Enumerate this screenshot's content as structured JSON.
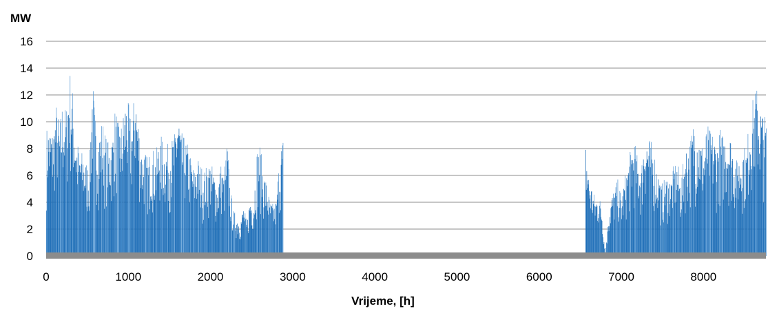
{
  "chart_data": {
    "type": "bar",
    "title": "",
    "xlabel": "Vrijeme, [h]",
    "ylabel": "MW",
    "xlim": [
      0,
      8760
    ],
    "ylim": [
      0,
      16
    ],
    "x_ticks": [
      0,
      1000,
      2000,
      3000,
      4000,
      5000,
      6000,
      7000,
      8000
    ],
    "y_ticks": [
      0,
      2,
      4,
      6,
      8,
      10,
      12,
      14,
      16
    ],
    "grid": true,
    "legend": "none",
    "colors": {
      "bars": "#1f6fb8",
      "bars_light": "#5b9bd5",
      "baseline": "#8c8c8c",
      "grid": "#8c8c8c"
    },
    "series": [
      {
        "values_note_x_step_h": 40,
        "peak_profile": [
          {
            "x": 0,
            "y": 9.6
          },
          {
            "x": 40,
            "y": 9.8
          },
          {
            "x": 80,
            "y": 9.4
          },
          {
            "x": 120,
            "y": 11.4
          },
          {
            "x": 160,
            "y": 9.9
          },
          {
            "x": 200,
            "y": 11.9
          },
          {
            "x": 240,
            "y": 10.8
          },
          {
            "x": 280,
            "y": 14.3
          },
          {
            "x": 320,
            "y": 12.4
          },
          {
            "x": 360,
            "y": 9.1
          },
          {
            "x": 400,
            "y": 8.0
          },
          {
            "x": 440,
            "y": 7.8
          },
          {
            "x": 480,
            "y": 7.2
          },
          {
            "x": 520,
            "y": 6.5
          },
          {
            "x": 560,
            "y": 13.6
          },
          {
            "x": 600,
            "y": 9.9
          },
          {
            "x": 640,
            "y": 9.2
          },
          {
            "x": 680,
            "y": 10.4
          },
          {
            "x": 720,
            "y": 9.1
          },
          {
            "x": 760,
            "y": 8.4
          },
          {
            "x": 800,
            "y": 9.0
          },
          {
            "x": 840,
            "y": 11.3
          },
          {
            "x": 880,
            "y": 9.8
          },
          {
            "x": 920,
            "y": 10.0
          },
          {
            "x": 960,
            "y": 11.9
          },
          {
            "x": 1000,
            "y": 11.4
          },
          {
            "x": 1040,
            "y": 9.7
          },
          {
            "x": 1080,
            "y": 13.2
          },
          {
            "x": 1120,
            "y": 10.2
          },
          {
            "x": 1160,
            "y": 8.0
          },
          {
            "x": 1200,
            "y": 7.9
          },
          {
            "x": 1240,
            "y": 7.2
          },
          {
            "x": 1280,
            "y": 8.6
          },
          {
            "x": 1320,
            "y": 7.5
          },
          {
            "x": 1360,
            "y": 8.5
          },
          {
            "x": 1400,
            "y": 9.0
          },
          {
            "x": 1440,
            "y": 8.1
          },
          {
            "x": 1480,
            "y": 8.4
          },
          {
            "x": 1520,
            "y": 8.7
          },
          {
            "x": 1560,
            "y": 9.2
          },
          {
            "x": 1600,
            "y": 11.5
          },
          {
            "x": 1640,
            "y": 9.3
          },
          {
            "x": 1680,
            "y": 8.8
          },
          {
            "x": 1720,
            "y": 8.4
          },
          {
            "x": 1760,
            "y": 7.3
          },
          {
            "x": 1800,
            "y": 6.5
          },
          {
            "x": 1840,
            "y": 7.5
          },
          {
            "x": 1880,
            "y": 6.8
          },
          {
            "x": 1920,
            "y": 6.4
          },
          {
            "x": 1960,
            "y": 6.9
          },
          {
            "x": 2000,
            "y": 7.1
          },
          {
            "x": 2040,
            "y": 6.3
          },
          {
            "x": 2080,
            "y": 5.2
          },
          {
            "x": 2120,
            "y": 7.0
          },
          {
            "x": 2160,
            "y": 6.1
          },
          {
            "x": 2200,
            "y": 8.7
          },
          {
            "x": 2240,
            "y": 5.0
          },
          {
            "x": 2280,
            "y": 3.4
          },
          {
            "x": 2320,
            "y": 3.0
          },
          {
            "x": 2360,
            "y": 2.7
          },
          {
            "x": 2400,
            "y": 3.8
          },
          {
            "x": 2440,
            "y": 2.5
          },
          {
            "x": 2480,
            "y": 4.6
          },
          {
            "x": 2520,
            "y": 4.0
          },
          {
            "x": 2560,
            "y": 7.9
          },
          {
            "x": 2600,
            "y": 8.4
          },
          {
            "x": 2640,
            "y": 6.4
          },
          {
            "x": 2680,
            "y": 5.6
          },
          {
            "x": 2720,
            "y": 4.1
          },
          {
            "x": 2760,
            "y": 3.9
          },
          {
            "x": 2800,
            "y": 4.2
          },
          {
            "x": 2840,
            "y": 7.9
          },
          {
            "x": 2880,
            "y": 8.9
          },
          {
            "x": 6560,
            "y": 8.8
          },
          {
            "x": 6600,
            "y": 6.3
          },
          {
            "x": 6640,
            "y": 5.2
          },
          {
            "x": 6680,
            "y": 4.4
          },
          {
            "x": 6720,
            "y": 4.7
          },
          {
            "x": 6760,
            "y": 3.8
          },
          {
            "x": 6800,
            "y": 0.0
          },
          {
            "x": 6840,
            "y": 3.3
          },
          {
            "x": 6880,
            "y": 4.6
          },
          {
            "x": 6920,
            "y": 5.2
          },
          {
            "x": 6960,
            "y": 5.8
          },
          {
            "x": 7000,
            "y": 4.3
          },
          {
            "x": 7040,
            "y": 6.0
          },
          {
            "x": 7080,
            "y": 6.9
          },
          {
            "x": 7120,
            "y": 8.4
          },
          {
            "x": 7160,
            "y": 8.6
          },
          {
            "x": 7200,
            "y": 7.3
          },
          {
            "x": 7240,
            "y": 6.6
          },
          {
            "x": 7280,
            "y": 9.7
          },
          {
            "x": 7320,
            "y": 9.0
          },
          {
            "x": 7360,
            "y": 8.6
          },
          {
            "x": 7400,
            "y": 7.8
          },
          {
            "x": 7440,
            "y": 6.5
          },
          {
            "x": 7480,
            "y": 5.4
          },
          {
            "x": 7520,
            "y": 5.7
          },
          {
            "x": 7560,
            "y": 6.1
          },
          {
            "x": 7600,
            "y": 5.8
          },
          {
            "x": 7640,
            "y": 6.9
          },
          {
            "x": 7680,
            "y": 7.2
          },
          {
            "x": 7720,
            "y": 5.5
          },
          {
            "x": 7760,
            "y": 7.6
          },
          {
            "x": 7800,
            "y": 8.5
          },
          {
            "x": 7840,
            "y": 8.8
          },
          {
            "x": 7880,
            "y": 10.4
          },
          {
            "x": 7920,
            "y": 9.8
          },
          {
            "x": 7960,
            "y": 8.9
          },
          {
            "x": 8000,
            "y": 8.1
          },
          {
            "x": 8040,
            "y": 9.9
          },
          {
            "x": 8080,
            "y": 9.4
          },
          {
            "x": 8120,
            "y": 9.2
          },
          {
            "x": 8160,
            "y": 8.3
          },
          {
            "x": 8200,
            "y": 9.6
          },
          {
            "x": 8240,
            "y": 9.0
          },
          {
            "x": 8280,
            "y": 9.8
          },
          {
            "x": 8320,
            "y": 9.2
          },
          {
            "x": 8360,
            "y": 8.4
          },
          {
            "x": 8400,
            "y": 7.2
          },
          {
            "x": 8440,
            "y": 7.8
          },
          {
            "x": 8480,
            "y": 8.4
          },
          {
            "x": 8520,
            "y": 8.0
          },
          {
            "x": 8560,
            "y": 10.9
          },
          {
            "x": 8600,
            "y": 11.8
          },
          {
            "x": 8640,
            "y": 12.8
          },
          {
            "x": 8680,
            "y": 11.6
          },
          {
            "x": 8720,
            "y": 10.9
          },
          {
            "x": 8760,
            "y": 10.2
          }
        ]
      }
    ]
  }
}
